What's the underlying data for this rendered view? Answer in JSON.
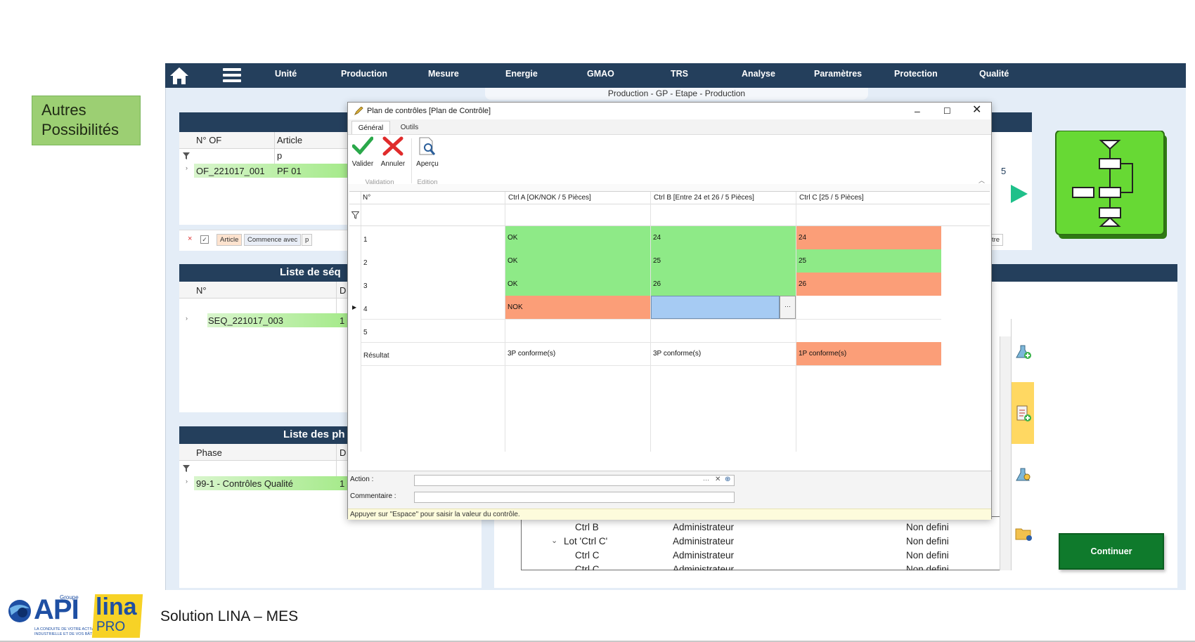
{
  "callout": {
    "line1": "Autres",
    "line2": "Possibilités"
  },
  "nav": {
    "items": [
      "Unité",
      "Production",
      "Mesure",
      "Energie",
      "GMAO",
      "TRS",
      "Analyse",
      "Paramètres",
      "Protection",
      "Qualité"
    ],
    "breadcrumb": "Production - GP - Etape - Production"
  },
  "of_panel": {
    "col_of": "N° OF",
    "col_article": "Article",
    "filter_article": "p",
    "row_of": "OF_221017_001",
    "row_article": "PF 01",
    "right_count": "5",
    "filter_chips": [
      "Article",
      "Commence avec",
      "p"
    ],
    "right_btn_partial": "tre"
  },
  "seq_panel": {
    "title_partial": "Liste de séq",
    "col_n": "N°",
    "col_d_partial": "D",
    "row_seq": "SEQ_221017_003",
    "row_d_partial": "1"
  },
  "phase_panel": {
    "title_partial": "Liste des ph",
    "col_phase": "Phase",
    "col_d_partial": "D",
    "row_phase": "99-1 - Contrôles Qualité",
    "row_d_partial": "1"
  },
  "tree": {
    "rows": [
      {
        "name": "Ctrl B",
        "user": "Administrateur",
        "status": "Non defini"
      },
      {
        "name": "Lot 'Ctrl C'",
        "user": "Administrateur",
        "status": "Non defini"
      },
      {
        "name": "Ctrl C",
        "user": "Administrateur",
        "status": "Non defini"
      },
      {
        "name": "Ctrl C",
        "user": "Administrateur",
        "status": "Non defini"
      }
    ]
  },
  "continuer_label": "Continuer",
  "dialog": {
    "title": "Plan de contrôles [Plan de Contrôle]",
    "tabs": [
      "Général",
      "Outils"
    ],
    "buttons": {
      "valider": "Valider",
      "annuler": "Annuler",
      "apercu": "Aperçu"
    },
    "groups": {
      "validation": "Validation",
      "edition": "Edition"
    },
    "columns": [
      "N°",
      "Ctrl A [OK/NOK / 5 Pièces]",
      "Ctrl B [Entre 24 et 26 / 5 Pièces]",
      "Ctrl C [25 / 5 Pièces]"
    ],
    "rows": [
      {
        "n": "1",
        "a": "OK",
        "b": "24",
        "c": "24"
      },
      {
        "n": "2",
        "a": "OK",
        "b": "25",
        "c": "25"
      },
      {
        "n": "3",
        "a": "OK",
        "b": "26",
        "c": "26"
      },
      {
        "n": "4",
        "a": "NOK",
        "b": "",
        "c": ""
      },
      {
        "n": "5",
        "a": "",
        "b": "",
        "c": ""
      }
    ],
    "result": {
      "n": "Résultat",
      "a": "3P conforme(s)",
      "b": "3P conforme(s)",
      "c": "1P conforme(s)"
    },
    "action_label": "Action :",
    "comment_label": "Commentaire :",
    "ellipsis": "···",
    "hint": "Appuyer sur \"Espace\" pour saisir la valeur du contrôle."
  },
  "footer": {
    "text": "Solution LINA – MES",
    "logo_api_small": "Groupe",
    "logo_api": "API",
    "logo_api_tagline1": "LA CONDUITE DE VOTRE ACTIVITÉ",
    "logo_api_tagline2": "INDUSTRIELLE ET DE VOS BÂTIMENTS",
    "logo_lina": "lina",
    "logo_pro": "PRO"
  },
  "colors": {
    "nav": "#243f5c",
    "ok_green": "#8eea87",
    "nok_orange": "#fb9e78",
    "edit_blue": "#a6cbf3",
    "continuer": "#0f7a2c"
  }
}
